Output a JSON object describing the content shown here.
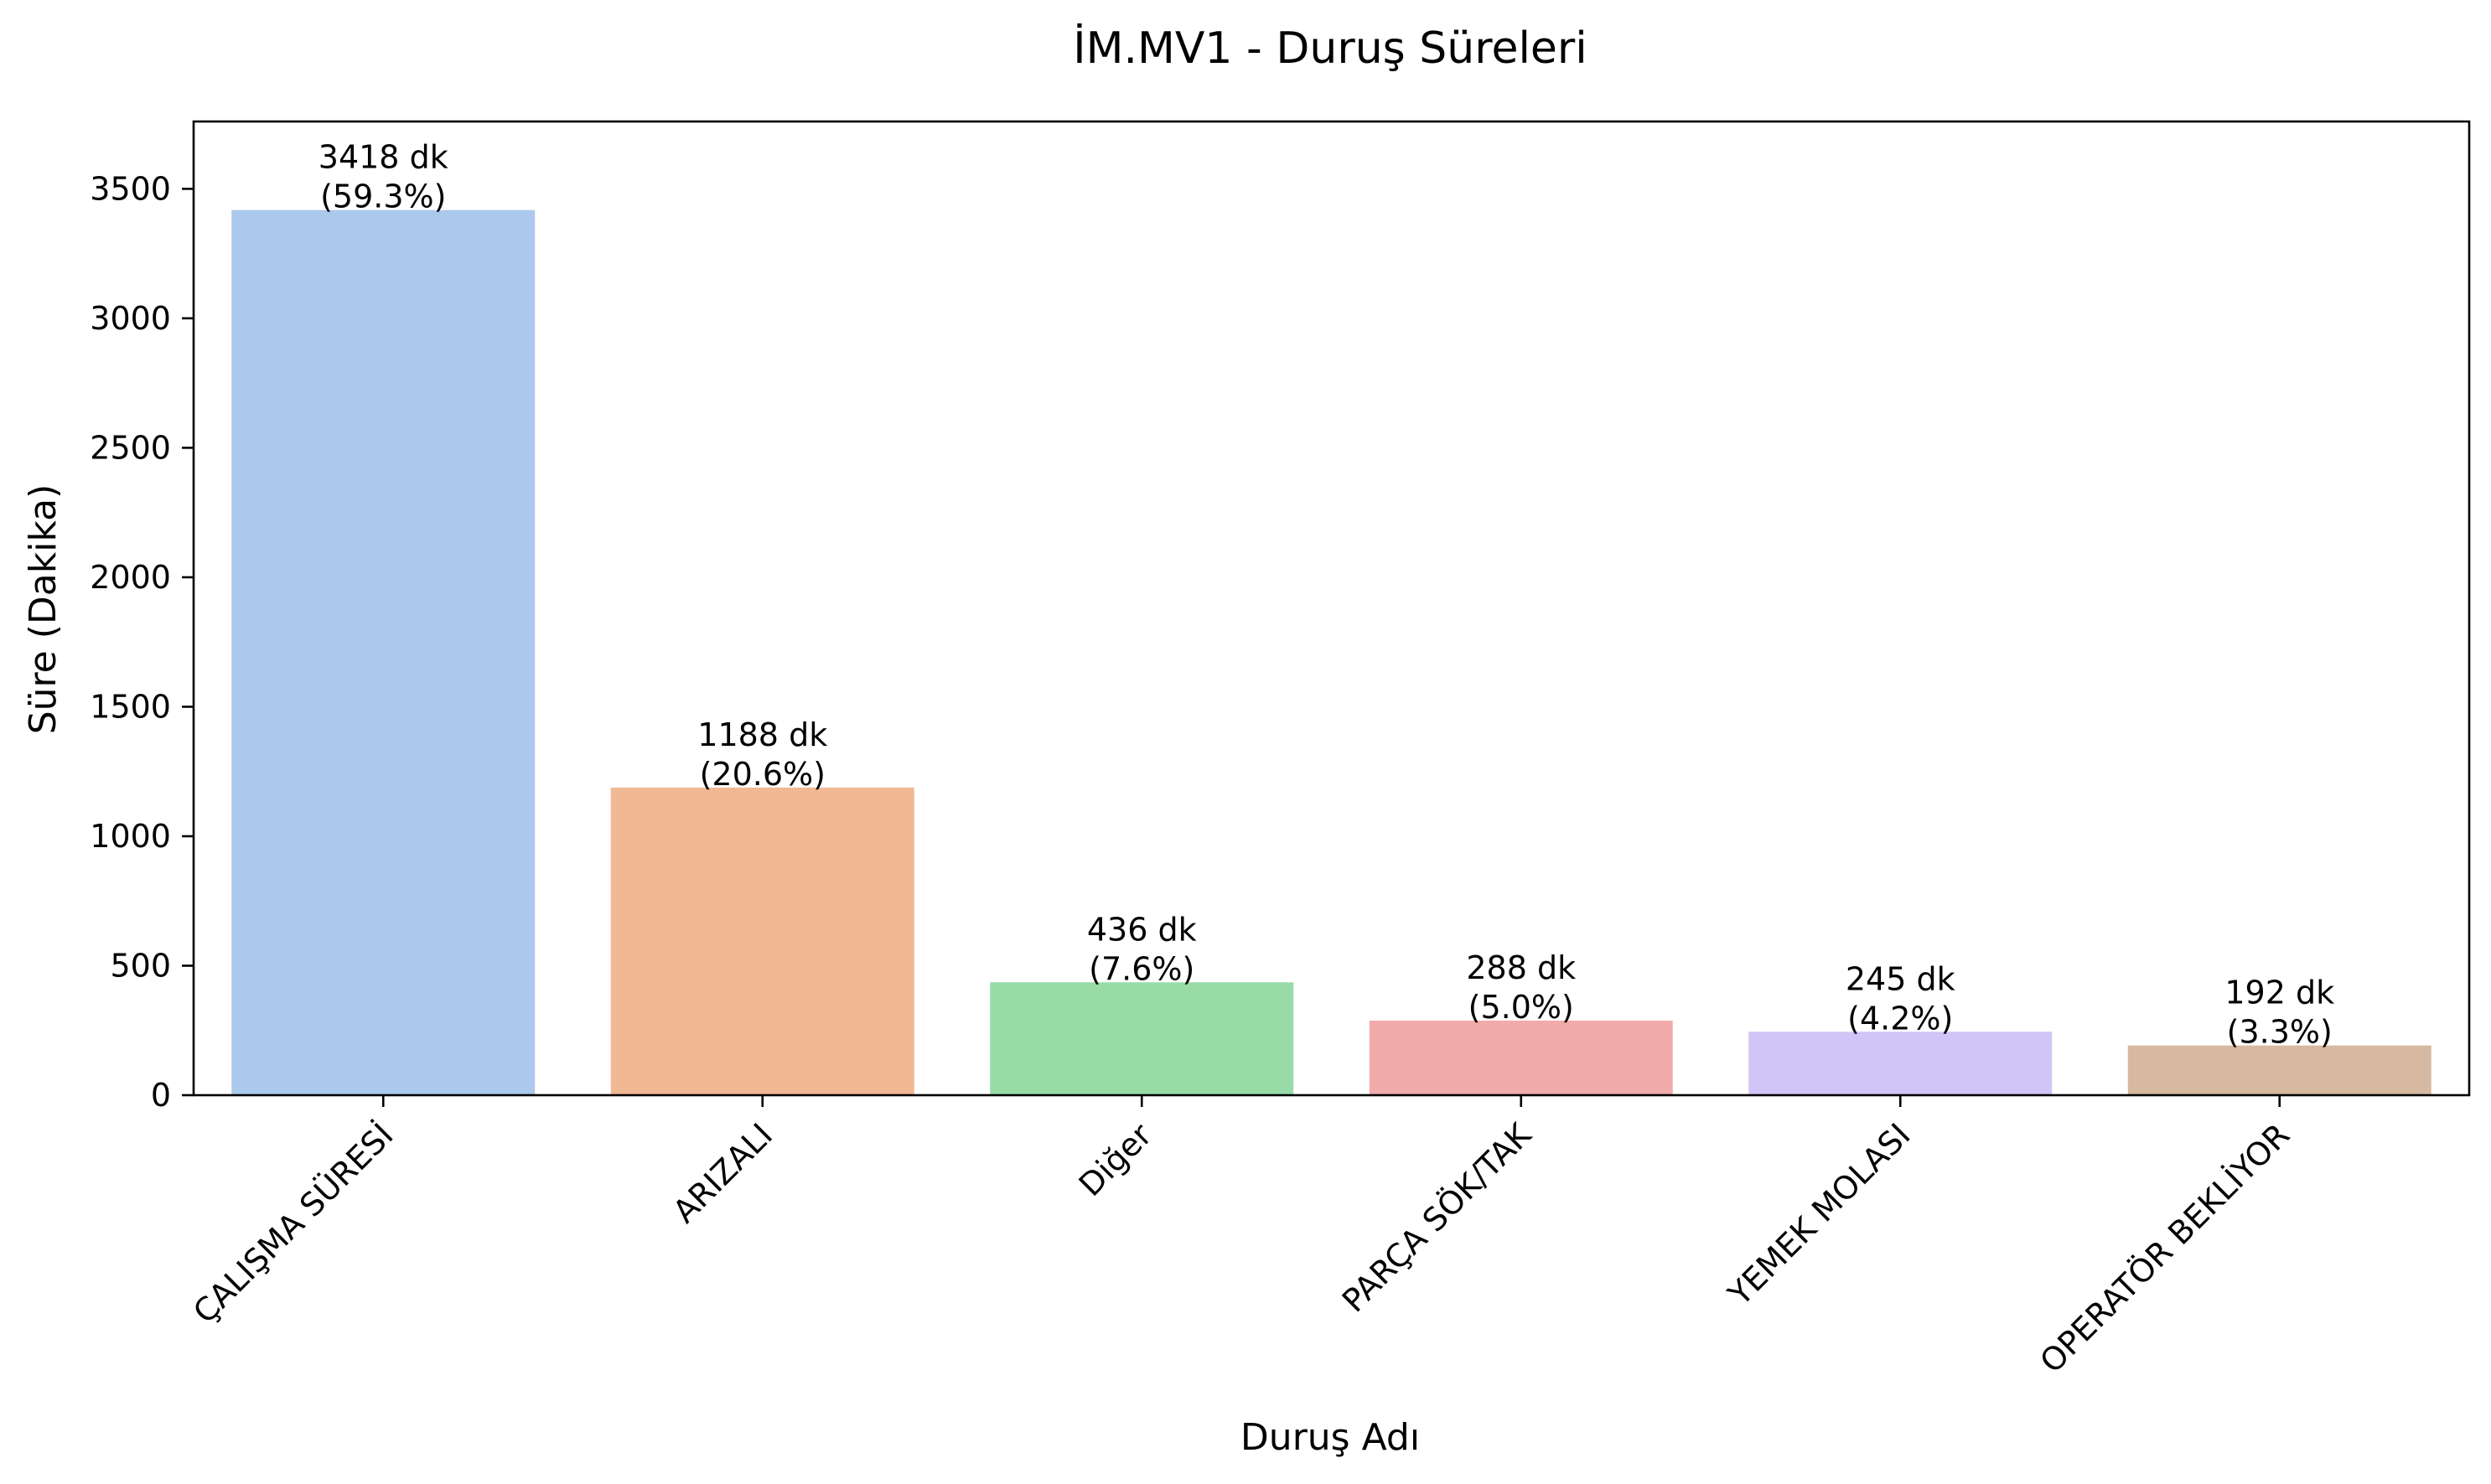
{
  "chart_data": {
    "type": "bar",
    "title": "İM.MV1 - Duruş Süreleri",
    "xlabel": "Duruş Adı",
    "ylabel": "Süre (Dakika)",
    "categories": [
      "ÇALIŞMA SÜRESİ",
      "ARIZALI",
      "Diğer",
      "PARÇA SÖK/TAK",
      "YEMEK MOLASI",
      "OPERATÖR BEKLİYOR"
    ],
    "values": [
      3418,
      1188,
      436,
      288,
      245,
      192
    ],
    "value_labels": [
      "3418 dk",
      "1188 dk",
      "436 dk",
      "288 dk",
      "245 dk",
      "192 dk"
    ],
    "percent_labels": [
      "(59.3%)",
      "(20.6%)",
      "(7.6%)",
      "(5.0%)",
      "(4.2%)",
      "(3.3%)"
    ],
    "colors": [
      "#abc9ec",
      "#f0b893",
      "#99dba7",
      "#f1abaa",
      "#d1c4f6",
      "#d6b9a0"
    ],
    "ylim": [
      0,
      3760
    ],
    "yticks": [
      0,
      500,
      1000,
      1500,
      2000,
      2500,
      3000,
      3500
    ],
    "grid": false,
    "legend": "none"
  }
}
